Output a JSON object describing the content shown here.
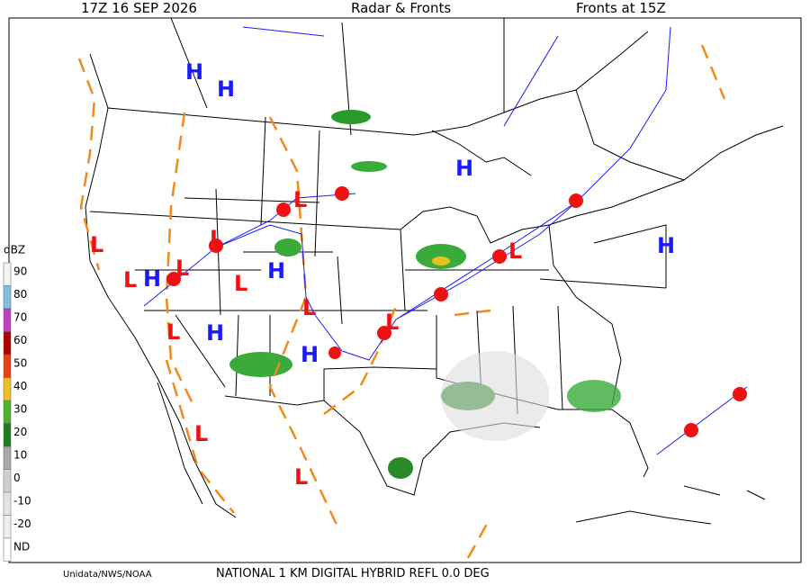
{
  "header": {
    "time": "17Z  16 SEP  2026",
    "title": "Radar & Fronts",
    "fronts_time": "Fronts at 15Z"
  },
  "scale": {
    "unit": "dBZ",
    "labels": [
      "90",
      "80",
      "70",
      "60",
      "50",
      "40",
      "30",
      "20",
      "10",
      "0",
      "-10",
      "-20",
      "ND"
    ]
  },
  "pressure_centers": [
    "H",
    "H",
    "H",
    "H",
    "H",
    "H",
    "H",
    "H",
    "L",
    "L",
    "L",
    "L",
    "L",
    "L",
    "L",
    "L",
    "L",
    "L",
    "L",
    "L"
  ],
  "footer": {
    "credit": "Unidata/NWS/NOAA",
    "product": "NATIONAL 1 KM DIGITAL HYBRID REFL 0.0 DEG"
  }
}
